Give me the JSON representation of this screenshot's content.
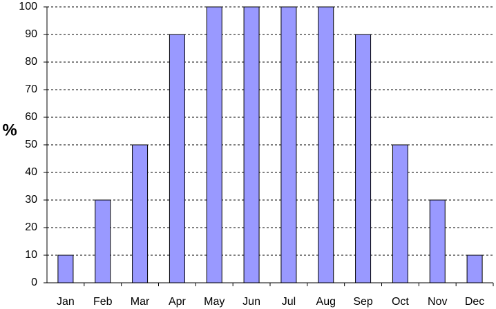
{
  "chart_data": {
    "type": "bar",
    "y_label": "%",
    "categories": [
      "Jan",
      "Feb",
      "Mar",
      "Apr",
      "May",
      "Jun",
      "Jul",
      "Aug",
      "Sep",
      "Oct",
      "Nov",
      "Dec"
    ],
    "values": [
      10,
      30,
      50,
      90,
      100,
      100,
      100,
      100,
      90,
      50,
      30,
      10
    ],
    "color": "#9999ff",
    "ylim": [
      0,
      100
    ],
    "yticks": [
      0,
      10,
      20,
      30,
      40,
      50,
      60,
      70,
      80,
      90,
      100
    ],
    "grid": true
  }
}
